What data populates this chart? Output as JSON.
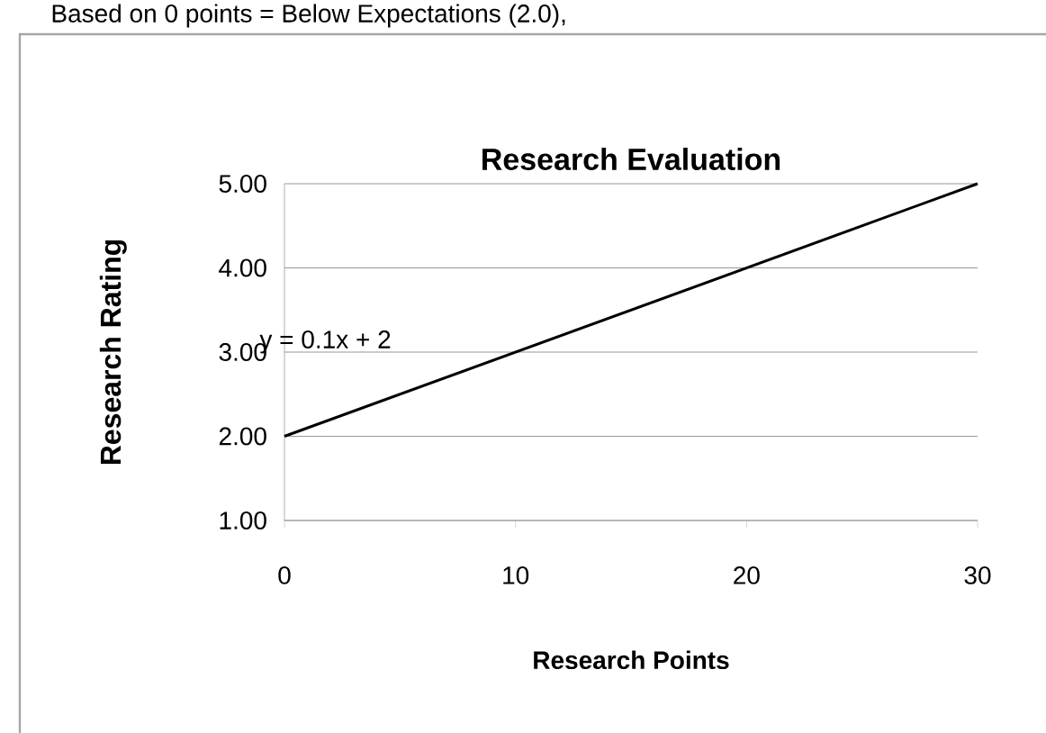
{
  "chart_data": {
    "type": "line",
    "title": "Research Evaluation",
    "xlabel": "Research Points",
    "ylabel": "Research Rating",
    "series": [
      {
        "type": "line",
        "color": "#000000",
        "x": [
          0,
          30
        ],
        "values": [
          2,
          5
        ]
      }
    ],
    "xlim": [
      0,
      30
    ],
    "xticks": [
      0,
      10,
      20,
      30
    ],
    "ylim": [
      1,
      5
    ],
    "yticks": [
      {
        "value": 1,
        "label": "1.00"
      },
      {
        "value": 2,
        "label": "2.00"
      },
      {
        "value": 3,
        "label": "3.00"
      },
      {
        "value": 4,
        "label": "4.00"
      },
      {
        "value": 5,
        "label": "5.00"
      }
    ],
    "grid": "y",
    "legend": false,
    "annotations": [
      "Based on 0 points = Below Expectations (2.0),",
      "y = 0.1x + 2"
    ]
  }
}
